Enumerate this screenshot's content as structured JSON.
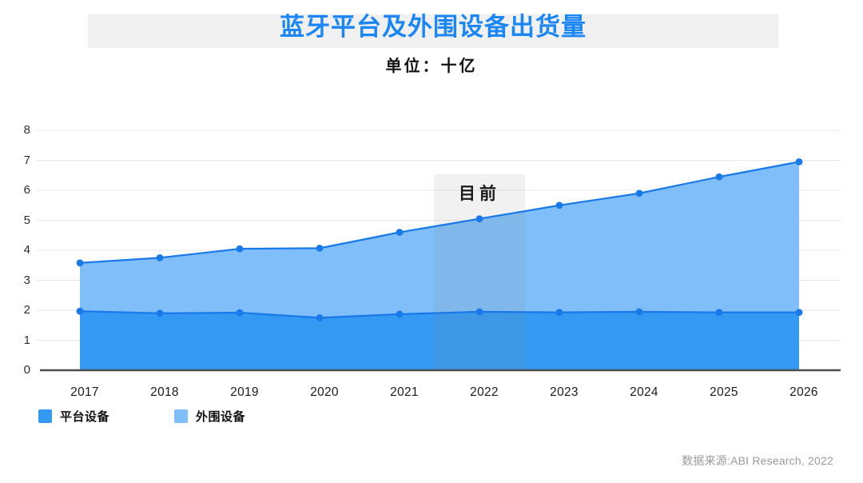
{
  "header": {
    "title": "蓝牙平台及外围设备出货量",
    "subtitle": "单位：十亿"
  },
  "source": {
    "text": "数据来源:ABI Research, 2022"
  },
  "colors": {
    "title_accent": "#1b86f5",
    "banner_bg": "#f0f0f0",
    "platform_fill": "#3399f3",
    "peripheral_fill": "#7fbef8",
    "line": "#1979e9",
    "dot": "#1979e9",
    "gridline": "#e8e8e8",
    "axis": "#4d4d4d",
    "band_overlay": "rgba(143,143,143,0.13)"
  },
  "chart_data": {
    "type": "area",
    "stacked": true,
    "title": "蓝牙平台及外围设备出货量",
    "unit_label": "单位：十亿",
    "categories": [
      "2017",
      "2018",
      "2019",
      "2020",
      "2021",
      "2022",
      "2023",
      "2024",
      "2025",
      "2026"
    ],
    "series": [
      {
        "name": "平台设备",
        "color": "#3399f3",
        "values": [
          1.97,
          1.9,
          1.92,
          1.75,
          1.87,
          1.95,
          1.93,
          1.95,
          1.93,
          1.93
        ]
      },
      {
        "name": "外围设备",
        "color": "#7fbef8",
        "values": [
          1.61,
          1.85,
          2.13,
          2.32,
          2.73,
          3.1,
          3.57,
          3.95,
          4.52,
          5.02
        ]
      }
    ],
    "stack_totals": [
      3.58,
      3.75,
      4.05,
      4.07,
      4.6,
      5.05,
      5.5,
      5.9,
      6.45,
      6.95
    ],
    "xlabel": "",
    "ylabel": "",
    "ylim": [
      0,
      8
    ],
    "y_ticks": [
      0,
      1,
      2,
      3,
      4,
      5,
      6,
      7,
      8
    ],
    "grid": true,
    "legend_position": "bottom-left",
    "annotation": {
      "label": "目前",
      "x": "2022"
    }
  }
}
